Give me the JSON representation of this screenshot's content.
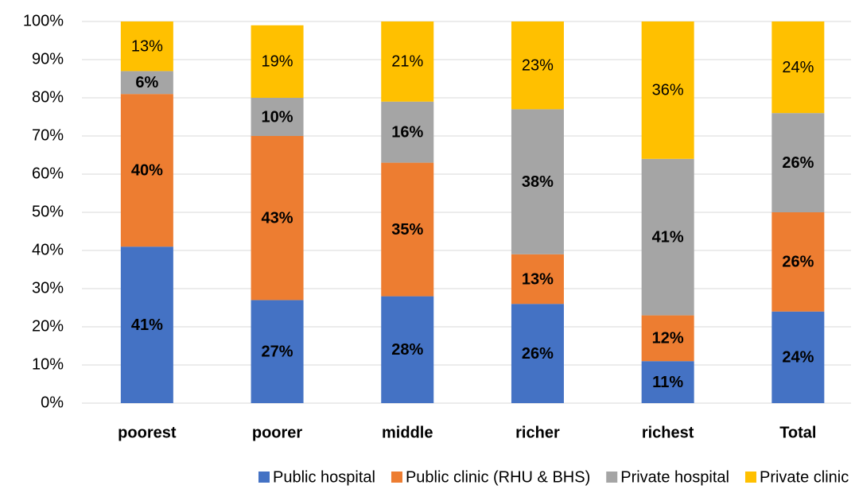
{
  "chart_data": {
    "type": "stacked_bar",
    "categories": [
      "poorest",
      "poorer",
      "middle",
      "richer",
      "richest",
      "Total"
    ],
    "series": [
      {
        "name": "Public hospital",
        "color": "#4472c4",
        "label_color": "#ffffff",
        "values": [
          41,
          27,
          28,
          26,
          11,
          24
        ],
        "value_labels": [
          "41%",
          "27%",
          "28%",
          "26%",
          "11%",
          "24%"
        ]
      },
      {
        "name": "Public clinic (RHU & BHS)",
        "color": "#ed7d31",
        "label_color": "#ffffff",
        "values": [
          40,
          43,
          35,
          13,
          12,
          26
        ],
        "value_labels": [
          "40%",
          "43%",
          "35%",
          "13%",
          "12%",
          "26%"
        ]
      },
      {
        "name": "Private hospital",
        "color": "#a5a5a5",
        "label_color": "#ffffff",
        "values": [
          6,
          10,
          16,
          38,
          41,
          26
        ],
        "value_labels": [
          "6%",
          "10%",
          "16%",
          "38%",
          "41%",
          "26%"
        ]
      },
      {
        "name": "Private clinic",
        "color": "#ffc000",
        "label_color": "#000000",
        "values": [
          13,
          19,
          21,
          23,
          36,
          24
        ],
        "value_labels": [
          "13%",
          "19%",
          "21%",
          "23%",
          "36%",
          "24%"
        ]
      }
    ],
    "ylim": [
      0,
      100
    ],
    "yticks": [
      {
        "value": 0,
        "label": "0%"
      },
      {
        "value": 10,
        "label": "10%"
      },
      {
        "value": 20,
        "label": "20%"
      },
      {
        "value": 30,
        "label": "30%"
      },
      {
        "value": 40,
        "label": "40%"
      },
      {
        "value": 50,
        "label": "50%"
      },
      {
        "value": 60,
        "label": "60%"
      },
      {
        "value": 70,
        "label": "70%"
      },
      {
        "value": 80,
        "label": "80%"
      },
      {
        "value": 90,
        "label": "90%"
      },
      {
        "value": 100,
        "label": "100%"
      }
    ],
    "grid": true,
    "legend": "bottom"
  }
}
